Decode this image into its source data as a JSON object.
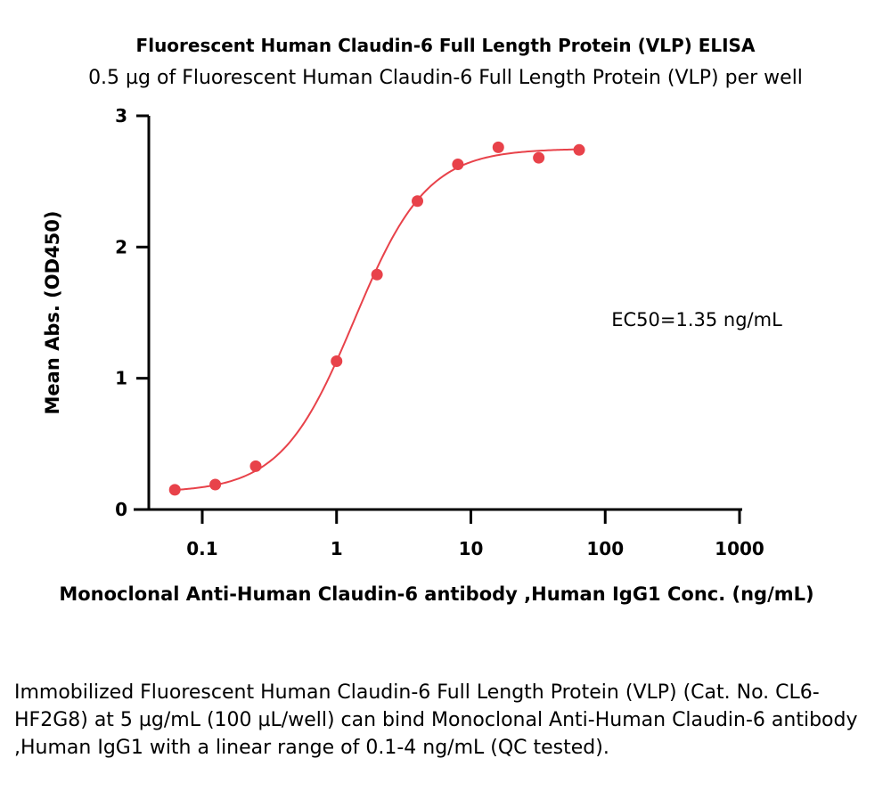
{
  "chart_data": {
    "type": "scatter",
    "title": "Fluorescent Human Claudin-6 Full Length Protein (VLP) ELISA",
    "subtitle": "0.5 µg of Fluorescent Human Claudin-6 Full Length Protein (VLP) per well",
    "xlabel": "Monoclonal Anti-Human Claudin-6 antibody ,Human IgG1 Conc. (ng/mL)",
    "ylabel": "Mean Abs. (OD450)",
    "x_scale": "log",
    "xlim": [
      0.04,
      1000
    ],
    "ylim": [
      0,
      3
    ],
    "x_ticks": [
      0.1,
      1,
      10,
      100,
      1000
    ],
    "x_tick_labels": [
      "0.1",
      "1",
      "10",
      "100",
      "1000"
    ],
    "y_ticks": [
      0,
      1,
      2,
      3
    ],
    "y_tick_labels": [
      "0",
      "1",
      "2",
      "3"
    ],
    "grid": false,
    "annotation": "EC50=1.35 ng/mL",
    "color": "#e8424a",
    "series": [
      {
        "x": [
          0.0625,
          0.125,
          0.25,
          1,
          2,
          4,
          8,
          16,
          32,
          64
        ],
        "values": [
          0.15,
          0.19,
          0.33,
          1.13,
          1.79,
          2.35,
          2.63,
          2.76,
          2.68,
          2.74
        ]
      }
    ],
    "fit": {
      "model": "4PL",
      "bottom": 0.13,
      "top": 2.75,
      "ec50": 1.35,
      "hill": 1.6
    }
  },
  "caption": "Immobilized Fluorescent Human Claudin-6 Full Length Protein (VLP) (Cat. No. CL6-HF2G8) at 5 µg/mL (100 µL/well) can bind Monoclonal Anti-Human Claudin-6 antibody ,Human IgG1 with a linear range of 0.1-4 ng/mL (QC tested)."
}
